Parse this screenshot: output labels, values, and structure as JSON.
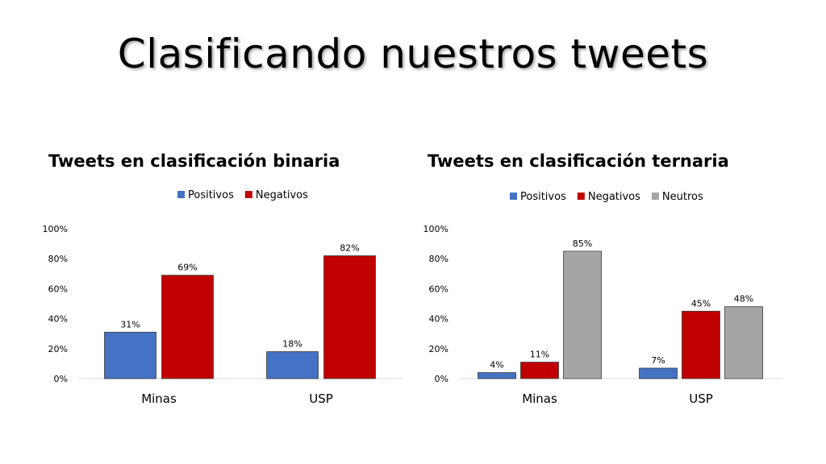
{
  "slide": {
    "title": "Clasificando nuestros tweets"
  },
  "colors": {
    "Positivos": "#4472C4",
    "Negativos": "#C00000",
    "Neutros": "#A5A5A5"
  },
  "chart_data": [
    {
      "type": "bar",
      "title": "Tweets en clasificación binaria",
      "categories": [
        "Minas",
        "USP"
      ],
      "series": [
        {
          "name": "Positivos",
          "values": [
            31,
            18
          ]
        },
        {
          "name": "Negativos",
          "values": [
            69,
            82
          ]
        }
      ],
      "value_labels": [
        [
          "31%",
          "18%"
        ],
        [
          "69%",
          "82%"
        ]
      ],
      "yticks": [
        "0%",
        "20%",
        "40%",
        "60%",
        "80%",
        "100%"
      ],
      "ylim": [
        0,
        100
      ],
      "legend": "top",
      "grid": false
    },
    {
      "type": "bar",
      "title": "Tweets en clasificación ternaria",
      "categories": [
        "Minas",
        "USP"
      ],
      "series": [
        {
          "name": "Positivos",
          "values": [
            4,
            7
          ]
        },
        {
          "name": "Negativos",
          "values": [
            11,
            45
          ]
        },
        {
          "name": "Neutros",
          "values": [
            85,
            48
          ]
        }
      ],
      "value_labels": [
        [
          "4%",
          "7%"
        ],
        [
          "11%",
          "45%"
        ],
        [
          "85%",
          "48%"
        ]
      ],
      "yticks": [
        "0%",
        "20%",
        "40%",
        "60%",
        "80%",
        "100%"
      ],
      "ylim": [
        0,
        100
      ],
      "legend": "top",
      "grid": false
    }
  ]
}
